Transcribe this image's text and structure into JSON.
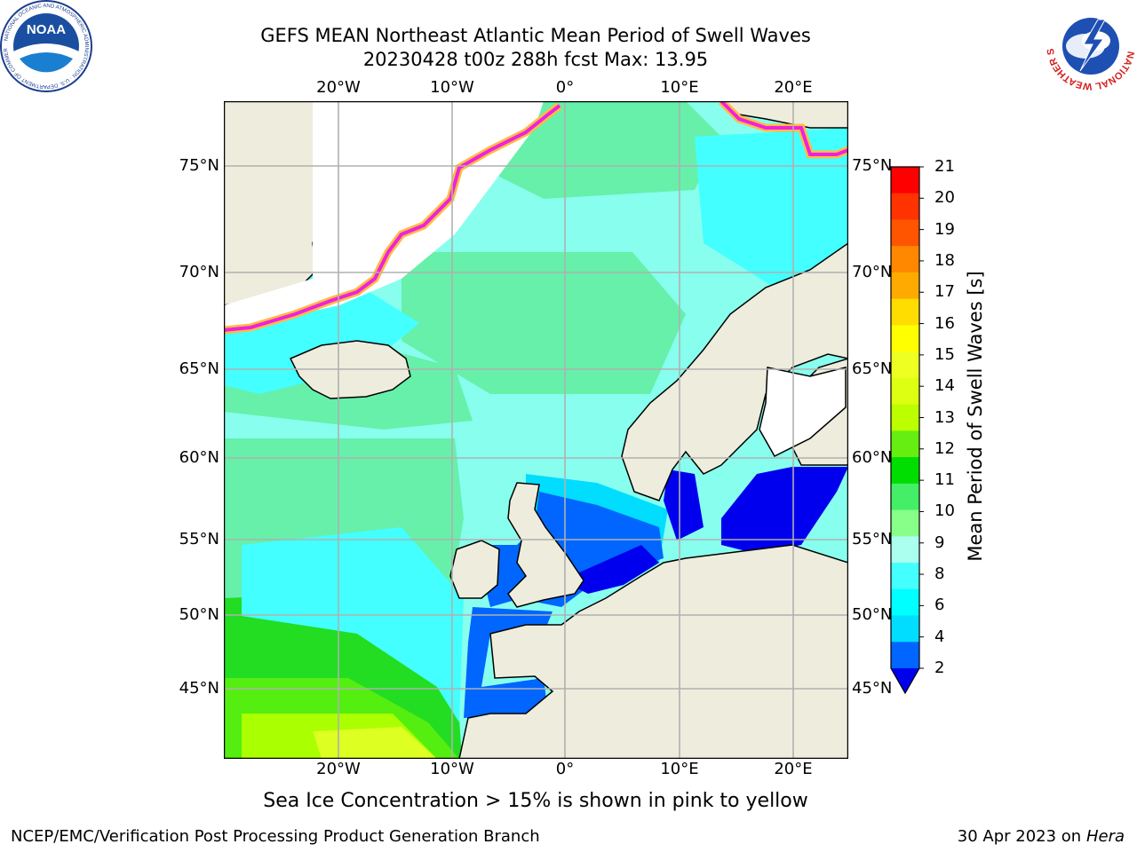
{
  "title": {
    "line1": "GEFS MEAN Northeast Atlantic Mean Period of Swell Waves",
    "line2": "20230428 t00z 288h fcst   Max: 13.95"
  },
  "logos": {
    "left": {
      "name": "noaa-logo",
      "text": "NOAA",
      "ring_text": "NATIONAL OCEANIC AND ATMOSPHERIC ADMINISTRATION · U.S. DEPARTMENT OF COMMERCE"
    },
    "right": {
      "name": "nws-logo",
      "ring_text": "NATIONAL WEATHER SERVICE"
    }
  },
  "map": {
    "lon_labels": [
      "20°W",
      "10°W",
      "0°",
      "10°E",
      "20°E"
    ],
    "lat_labels": [
      "75°N",
      "70°N",
      "65°N",
      "60°N",
      "55°N",
      "50°N",
      "45°N"
    ],
    "colors": {
      "land": "#eeecdc",
      "ice_edge": "#ee22dd",
      "ice_inner": "#ffbb44",
      "grid": "#b0b0b0"
    }
  },
  "colorbar": {
    "label": "Mean Period of Swell Waves [s]",
    "ticks": [
      "21",
      "20",
      "19",
      "18",
      "17",
      "16",
      "15",
      "14",
      "13",
      "12",
      "11",
      "10",
      "9",
      "8",
      "6",
      "4",
      "2"
    ],
    "colors": [
      "#ff0000",
      "#ff3300",
      "#ff5500",
      "#ff8800",
      "#ffaa00",
      "#ffdd00",
      "#ffff00",
      "#eeff22",
      "#ddff11",
      "#bbff00",
      "#66ee11",
      "#00dd00",
      "#44ee66",
      "#88ff88",
      "#aaffee",
      "#44ffff",
      "#00ffff",
      "#00ddff",
      "#0066ff"
    ],
    "extend_color": "#0000ee"
  },
  "caption": "Sea Ice Concentration > 15% is shown in pink to yellow",
  "footer": {
    "left": "NCEP/EMC/Verification Post Processing Product Generation Branch",
    "right_date": "30 Apr 2023 on ",
    "right_host": "Hera"
  }
}
